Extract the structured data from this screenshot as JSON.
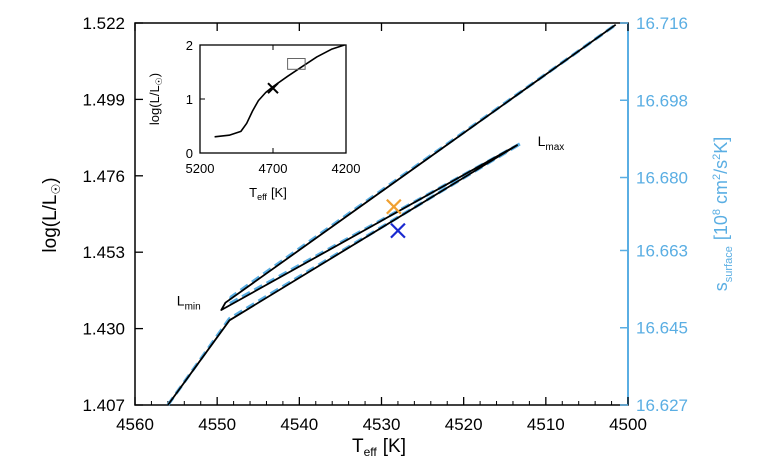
{
  "chart_data": {
    "type": "line",
    "xlabel": "T",
    "xlabel_sub": "eff",
    "xlabel_unit": "[K]",
    "xlim": [
      4560,
      4500
    ],
    "xticks": [
      "4560",
      "4550",
      "4540",
      "4530",
      "4520",
      "4510",
      "4500"
    ],
    "ylabel": "log(L/L",
    "ylabel_sym": "☉",
    "ylabel_end": ")",
    "ylim": [
      1.407,
      1.522
    ],
    "yticks": [
      "1.522",
      "1.499",
      "1.476",
      "1.453",
      "1.430",
      "1.407"
    ],
    "y2label_main": "s",
    "y2label_sub": "surface",
    "y2label_unit": "[10",
    "y2label_exp1": "8",
    "y2label_mid": " cm",
    "y2label_exp2": "2",
    "y2label_mid2": "/s",
    "y2label_exp3": "2",
    "y2label_end": "K]",
    "y2ticks": [
      "16.716",
      "16.698",
      "16.680",
      "16.663",
      "16.645",
      "16.627"
    ],
    "y2lim": [
      16.627,
      16.716
    ],
    "colors": {
      "axis2": "#5aaee3",
      "dashed": "#5aaee3",
      "solid": "#000000",
      "marker_orange": "#f0a030",
      "marker_blue": "#1a2ad0"
    },
    "series": [
      {
        "line": "solid",
        "x": [
          4556,
          4548.5,
          4513.5,
          4549.5,
          4549,
          4501.5
        ],
        "y": [
          1.407,
          1.4325,
          1.4852,
          1.4356,
          1.4378,
          1.5215
        ]
      },
      {
        "line": "dashed",
        "x": [
          4556,
          4548.5,
          4513,
          4548.5,
          4548.3,
          4501.5
        ],
        "y": [
          1.407,
          1.433,
          1.4858,
          1.4375,
          1.4395,
          1.5215
        ]
      }
    ],
    "markers": [
      {
        "x": 4528.5,
        "y": 1.4667,
        "color": "orange"
      },
      {
        "x": 4528,
        "y": 1.4595,
        "color": "blue"
      }
    ],
    "annotations": [
      {
        "text": "L",
        "sub": "min",
        "x": 4552,
        "y": 1.4375
      },
      {
        "text": "L",
        "sub": "max",
        "x": 4511,
        "y": 1.4855
      }
    ],
    "inset": {
      "xlim": [
        5200,
        4200
      ],
      "ylim": [
        0,
        2
      ],
      "xticks": [
        "5200",
        "4700",
        "4200"
      ],
      "yticks": [
        "0",
        "1",
        "2"
      ],
      "xlabel": "T",
      "xlabel_sub": "eff",
      "xlabel_unit": "[K]",
      "ylabel": "log(L/L",
      "ylabel_sym": "☉",
      "ylabel_end": ")",
      "x": [
        5100,
        5000,
        4920,
        4880,
        4840,
        4800,
        4750,
        4700,
        4600,
        4500,
        4400,
        4300,
        4210
      ],
      "y": [
        0.3,
        0.33,
        0.4,
        0.55,
        0.78,
        0.97,
        1.12,
        1.23,
        1.42,
        1.6,
        1.78,
        1.92,
        2.0
      ],
      "marker": {
        "x": 4700,
        "y": 1.2
      },
      "box": {
        "x0": 4480,
        "x1": 4600,
        "y0": 1.55,
        "y1": 1.75
      }
    }
  }
}
